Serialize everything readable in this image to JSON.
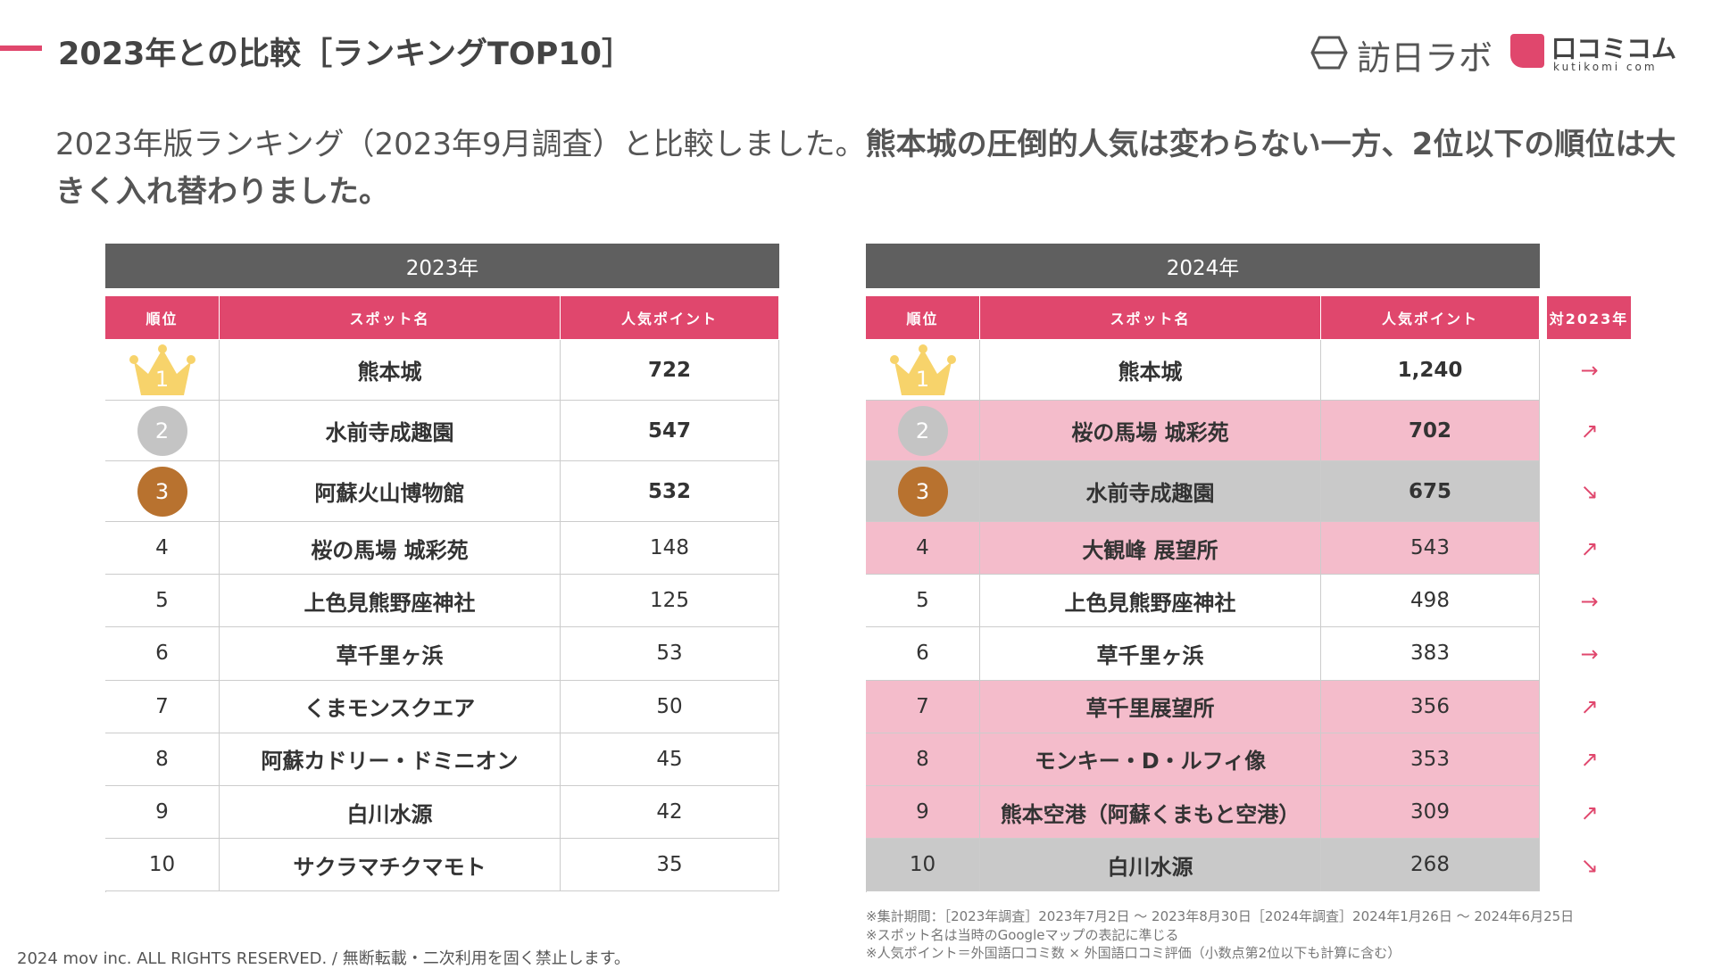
{
  "header": {
    "title": "2023年との比較［ランキングTOP10］",
    "logo": "訪日ラボ",
    "logo2": "口コミコム",
    "logo2_sub": "kutikomi com"
  },
  "intro": {
    "normal": "2023年版ランキング（2023年9月調査）と比較しました。",
    "bold": "熊本城の圧倒的人気は変わらない一方、2位以下の順位は大きく入れ替わりました。"
  },
  "tables": [
    {
      "title": "2023年",
      "columns": [
        "順位",
        "スポット名",
        "人気ポイント"
      ],
      "rows": [
        [
          "1",
          "熊本城",
          "722"
        ],
        [
          "2",
          "水前寺成趣園",
          "547"
        ],
        [
          "3",
          "阿蘇火山博物館",
          "532"
        ],
        [
          "4",
          "桜の馬場 城彩苑",
          "148"
        ],
        [
          "5",
          "上色見熊野座神社",
          "125"
        ],
        [
          "6",
          "草千里ヶ浜",
          "53"
        ],
        [
          "7",
          "くまモンスクエア",
          "50"
        ],
        [
          "8",
          "阿蘇カドリー・ドミニオン",
          "45"
        ],
        [
          "9",
          "白川水源",
          "42"
        ],
        [
          "10",
          "サクラマチクマモト",
          "35"
        ]
      ]
    },
    {
      "title": "2024年",
      "columns": [
        "順位",
        "スポット名",
        "人気ポイント",
        "対2023年"
      ],
      "rows": [
        [
          "1",
          "熊本城",
          "1,240",
          "→"
        ],
        [
          "2",
          "桜の馬場 城彩苑",
          "702",
          "↗"
        ],
        [
          "3",
          "水前寺成趣園",
          "675",
          "↘"
        ],
        [
          "4",
          "大観峰 展望所",
          "543",
          "↗"
        ],
        [
          "5",
          "上色見熊野座神社",
          "498",
          "→"
        ],
        [
          "6",
          "草千里ヶ浜",
          "383",
          "→"
        ],
        [
          "7",
          "草千里展望所",
          "356",
          "↗"
        ],
        [
          "8",
          "モンキー・D・ルフィ像",
          "353",
          "↗"
        ],
        [
          "9",
          "熊本空港（阿蘇くまもと空港）",
          "309",
          "↗"
        ],
        [
          "10",
          "白川水源",
          "268",
          "↘"
        ]
      ]
    }
  ],
  "notes": [
    "※集計期間：［2023年調査］2023年7月2日 〜 2023年8月30日［2024年調査］2024年1月26日 〜 2024年6月25日",
    "※スポット名は当時のGoogleマップの表記に準じる",
    "※人気ポイント＝外国語口コミ数 × 外国語口コミ評価（小数点第2位以下も計算に含む）"
  ],
  "footer": "2024 mov inc. ALL RIGHTS RESERVED. / 無断転載・二次利用を固く禁止します。"
}
